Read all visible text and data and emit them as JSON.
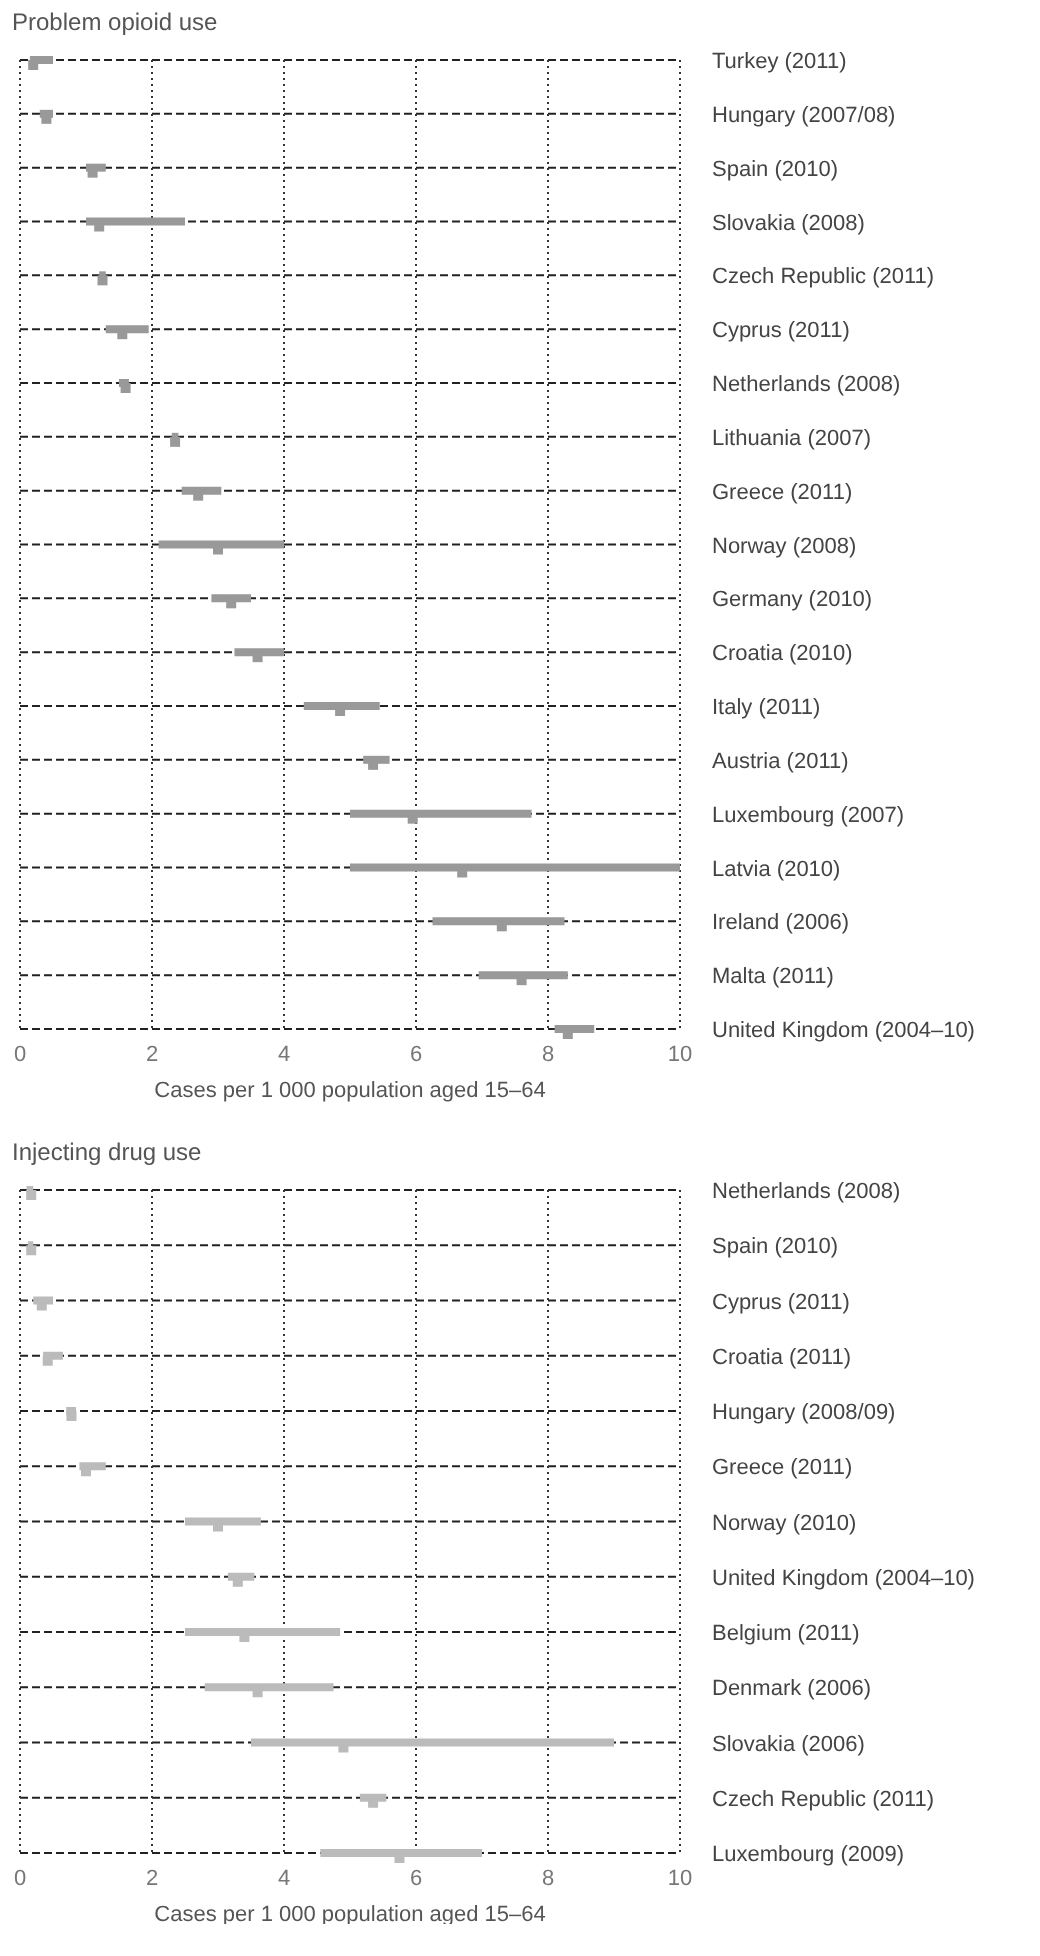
{
  "chart_data": [
    {
      "type": "scatter",
      "orientation": "horizontal",
      "title": "Problem opioid use",
      "xlabel": "Cases per 1 000 population aged 15–64",
      "categories": [
        "Turkey (2011)",
        "Hungary (2007/08)",
        "Spain (2010)",
        "Slovakia (2008)",
        "Czech Republic (2011)",
        "Cyprus (2011)",
        "Netherlands (2008)",
        "Lithuania (2007)",
        "Greece (2011)",
        "Norway (2008)",
        "Germany (2010)",
        "Croatia (2010)",
        "Italy (2011)",
        "Austria (2011)",
        "Luxembourg (2007)",
        "Latvia (2010)",
        "Ireland (2006)",
        "Malta (2011)",
        "United Kingdom (2004–10)"
      ],
      "series": [
        {
          "marker": "square",
          "color": "#999999",
          "values": [
            0.2,
            0.4,
            1.1,
            1.2,
            1.25,
            1.55,
            1.6,
            2.35,
            2.7,
            3.0,
            3.2,
            3.6,
            4.85,
            5.35,
            5.95,
            6.7,
            7.3,
            7.6,
            8.3
          ],
          "errors": [
            [
              0.15,
              0.5
            ],
            [
              0.3,
              0.5
            ],
            [
              1.0,
              1.3
            ],
            [
              1.0,
              2.5
            ],
            [
              1.2,
              1.3
            ],
            [
              1.3,
              1.95
            ],
            [
              1.5,
              1.65
            ],
            [
              2.3,
              2.4
            ],
            [
              2.45,
              3.05
            ],
            [
              2.1,
              4.0
            ],
            [
              2.9,
              3.5
            ],
            [
              3.25,
              4.0
            ],
            [
              4.3,
              5.45
            ],
            [
              5.2,
              5.6
            ],
            [
              5.0,
              7.75
            ],
            [
              5.0,
              10.0
            ],
            [
              6.25,
              8.25
            ],
            [
              6.95,
              8.3
            ],
            [
              8.1,
              8.7
            ]
          ]
        }
      ],
      "xlim": [
        0,
        10
      ],
      "xticks": [
        0,
        2,
        4,
        6,
        8,
        10
      ],
      "grid": true,
      "legend": false
    },
    {
      "type": "scatter",
      "orientation": "horizontal",
      "title": "Injecting drug use",
      "xlabel": "Cases per 1 000 population aged 15–64",
      "categories": [
        "Netherlands (2008)",
        "Spain (2010)",
        "Cyprus (2011)",
        "Croatia (2011)",
        "Hungary (2008/09)",
        "Greece (2011)",
        "Norway (2010)",
        "United Kingdom (2004–10)",
        "Belgium (2011)",
        "Denmark (2006)",
        "Slovakia (2006)",
        "Czech Republic (2011)",
        "Luxembourg (2009)"
      ],
      "series": [
        {
          "marker": "square",
          "color": "#bbbbbb",
          "values": [
            0.17,
            0.17,
            0.33,
            0.42,
            0.78,
            1.0,
            3.0,
            3.3,
            3.4,
            3.6,
            4.9,
            5.35,
            5.75
          ],
          "errors": [
            [
              0.1,
              0.2
            ],
            [
              0.12,
              0.2
            ],
            [
              0.2,
              0.5
            ],
            [
              0.35,
              0.65
            ],
            [
              0.7,
              0.85
            ],
            [
              0.9,
              1.3
            ],
            [
              2.5,
              3.65
            ],
            [
              3.15,
              3.55
            ],
            [
              2.5,
              4.85
            ],
            [
              2.8,
              4.75
            ],
            [
              3.5,
              9.0
            ],
            [
              5.15,
              5.55
            ],
            [
              4.55,
              7.0
            ]
          ]
        }
      ],
      "xlim": [
        0,
        10
      ],
      "xticks": [
        0,
        2,
        4,
        6,
        8,
        10
      ],
      "grid": true,
      "legend": false
    }
  ]
}
